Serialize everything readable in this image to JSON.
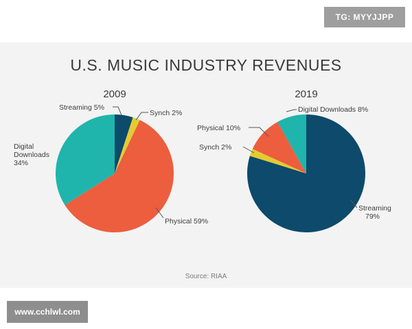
{
  "title": "U.S. MUSIC INDUSTRY REVENUES",
  "source": "Source: RIAA",
  "watermarks": {
    "top_right": "TG: MYYJJPP",
    "bottom_left": "www.cchlwl.com"
  },
  "colors": {
    "streaming": "#0d4a6b",
    "synch": "#e3cb31",
    "physical": "#ec5e3e",
    "digital": "#1fb5ac"
  },
  "chart_data": [
    {
      "type": "pie",
      "title": "2009",
      "slices": [
        {
          "key": "streaming",
          "label": "Streaming 5%",
          "value": 5
        },
        {
          "key": "synch",
          "label": "Synch 2%",
          "value": 2
        },
        {
          "key": "physical",
          "label": "Physical 59%",
          "value": 59
        },
        {
          "key": "digital",
          "label": "Digital Downloads 34%",
          "value": 34
        }
      ]
    },
    {
      "type": "pie",
      "title": "2019",
      "slices": [
        {
          "key": "streaming",
          "label": "Streaming 79%",
          "value": 79
        },
        {
          "key": "synch",
          "label": "Synch 2%",
          "value": 2
        },
        {
          "key": "physical",
          "label": "Physical 10%",
          "value": 10
        },
        {
          "key": "digital",
          "label": "Digital Downloads 8%",
          "value": 8
        }
      ]
    }
  ]
}
